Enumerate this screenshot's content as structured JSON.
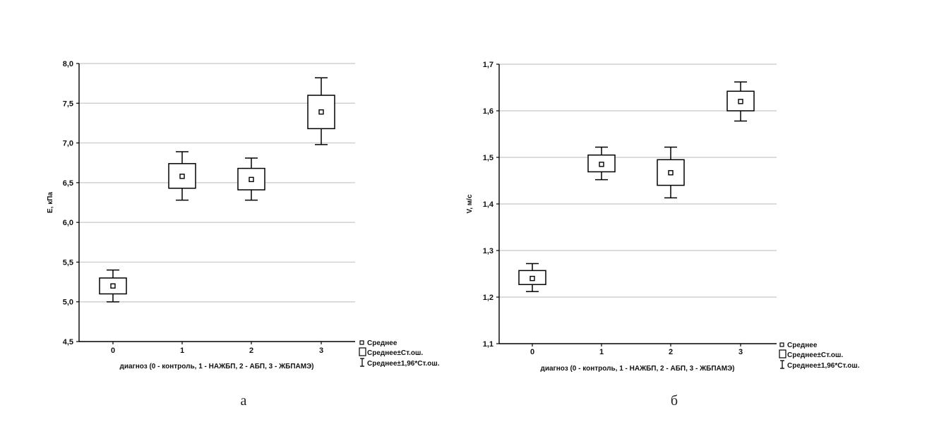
{
  "chart_data": [
    {
      "type": "box",
      "panel_label": "а",
      "ylabel": "E, кПа",
      "xlabel": "диагноз (0 - контроль, 1 - НАЖБП, 2 - АБП, 3 - ЖБПАМЭ)",
      "ylim": [
        4.5,
        8.0
      ],
      "yticks": [
        "4,5",
        "5,0",
        "5,5",
        "6,0",
        "6,5",
        "7,0",
        "7,5",
        "8,0"
      ],
      "ytick_values": [
        4.5,
        5.0,
        5.5,
        6.0,
        6.5,
        7.0,
        7.5,
        8.0
      ],
      "categories": [
        "0",
        "1",
        "2",
        "3"
      ],
      "grid": true,
      "legend_position": "bottom-right",
      "legend": [
        "Среднее",
        "Среднее±Ст.ош.",
        "Среднее±1,96*Ст.ош."
      ],
      "series": [
        {
          "category": "0",
          "mean": 5.2,
          "se_low": 5.1,
          "se_high": 5.3,
          "ci_low": 5.0,
          "ci_high": 5.4
        },
        {
          "category": "1",
          "mean": 6.58,
          "se_low": 6.43,
          "se_high": 6.74,
          "ci_low": 6.28,
          "ci_high": 6.89
        },
        {
          "category": "2",
          "mean": 6.54,
          "se_low": 6.41,
          "se_high": 6.68,
          "ci_low": 6.28,
          "ci_high": 6.81
        },
        {
          "category": "3",
          "mean": 7.39,
          "se_low": 7.18,
          "se_high": 7.6,
          "ci_low": 6.98,
          "ci_high": 7.82
        }
      ]
    },
    {
      "type": "box",
      "panel_label": "б",
      "ylabel": "V, м/с",
      "xlabel": "диагноз (0 - контроль, 1 - НАЖБП, 2 - АБП, 3 - ЖБПАМЭ)",
      "ylim": [
        1.1,
        1.7
      ],
      "yticks": [
        "1,1",
        "1,2",
        "1,3",
        "1,4",
        "1,5",
        "1,6",
        "1,7"
      ],
      "ytick_values": [
        1.1,
        1.2,
        1.3,
        1.4,
        1.5,
        1.6,
        1.7
      ],
      "categories": [
        "0",
        "1",
        "2",
        "3"
      ],
      "grid": true,
      "legend_position": "bottom-right",
      "legend": [
        "Среднее",
        "Среднее±Ст.ош.",
        "Среднее±1,96*Ст.ош."
      ],
      "series": [
        {
          "category": "0",
          "mean": 1.24,
          "se_low": 1.227,
          "se_high": 1.257,
          "ci_low": 1.212,
          "ci_high": 1.272
        },
        {
          "category": "1",
          "mean": 1.485,
          "se_low": 1.469,
          "se_high": 1.505,
          "ci_low": 1.452,
          "ci_high": 1.522
        },
        {
          "category": "2",
          "mean": 1.467,
          "se_low": 1.44,
          "se_high": 1.495,
          "ci_low": 1.413,
          "ci_high": 1.522
        },
        {
          "category": "3",
          "mean": 1.62,
          "se_low": 1.6,
          "se_high": 1.642,
          "ci_low": 1.578,
          "ci_high": 1.662
        }
      ]
    }
  ]
}
